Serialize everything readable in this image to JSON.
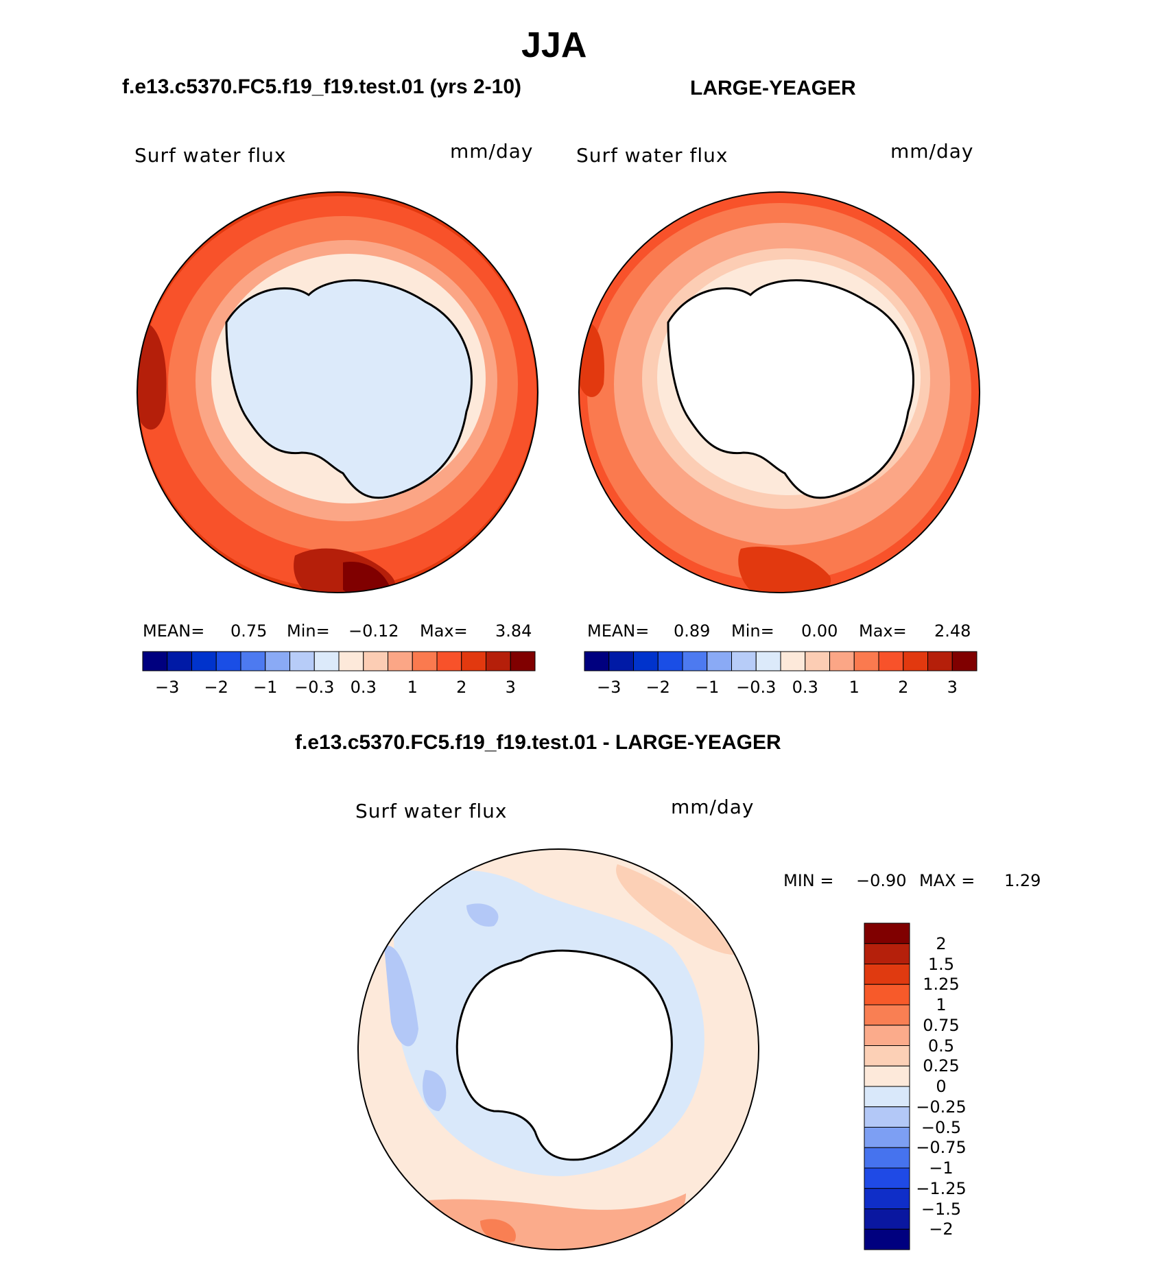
{
  "figure": {
    "title": "JJA",
    "panel_left_title": "f.e13.c5370.FC5.f19_f19.test.01 (yrs 2-10)",
    "panel_right_title": "LARGE-YEAGER",
    "diff_title": "f.e13.c5370.FC5.f19_f19.test.01 - LARGE-YEAGER"
  },
  "panels": {
    "left": {
      "variable": "Surf  water  flux",
      "units": "mm/day",
      "mean_label": "MEAN=",
      "mean_value": "0.75",
      "min_label": "Min=",
      "min_value": "−0.12",
      "max_label": "Max=",
      "max_value": "3.84"
    },
    "right": {
      "variable": "Surf  water  flux",
      "units": "mm/day",
      "mean_label": "MEAN=",
      "mean_value": "0.89",
      "min_label": "Min=",
      "min_value": "0.00",
      "max_label": "Max=",
      "max_value": "2.48"
    },
    "diff": {
      "variable": "Surf  water  flux",
      "units": "mm/day",
      "min_label": "MIN =",
      "min_value": "−0.90",
      "max_label": "MAX =",
      "max_value": "1.29"
    }
  },
  "colorbars": {
    "abs_colors": [
      "#00007f",
      "#001aa6",
      "#0033cc",
      "#1a4ee6",
      "#4d7af0",
      "#8aaaf5",
      "#b7ccf8",
      "#dceafa",
      "#fde9da",
      "#fccdb4",
      "#fba686",
      "#fa7a4f",
      "#f8522a",
      "#e2390f",
      "#b51f0a",
      "#800000"
    ],
    "abs_ticks": [
      "−3",
      "−2",
      "−1",
      "−0.3",
      "0.3",
      "1",
      "2",
      "3"
    ],
    "diff_colors": [
      "#00007f",
      "#0a17a0",
      "#0f2ec8",
      "#1f4ae6",
      "#4673ee",
      "#7d9ff3",
      "#b3c8f7",
      "#d9e8fa",
      "#fde9da",
      "#fcd0b6",
      "#fbab8b",
      "#f97f53",
      "#f75a2a",
      "#e03a10",
      "#b5200b",
      "#800000"
    ],
    "diff_ticks": [
      "2",
      "1.5",
      "1.25",
      "1",
      "0.75",
      "0.5",
      "0.25",
      "0",
      "−0.25",
      "−0.5",
      "−0.75",
      "−1",
      "−1.25",
      "−1.5",
      "−2"
    ]
  }
}
